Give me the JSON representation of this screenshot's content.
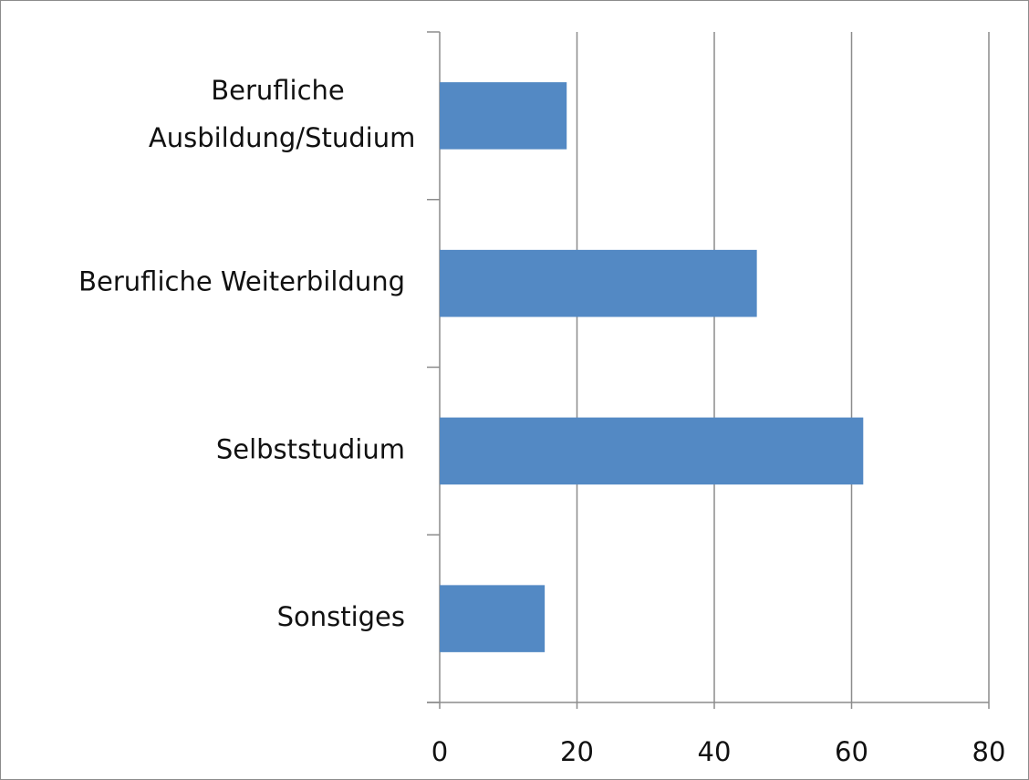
{
  "chart_data": {
    "type": "barh",
    "categories": [
      "Berufliche Ausbildung/Studium",
      "Berufliche Weiterbildung",
      "Selbststudium",
      "Sonstiges"
    ],
    "values": [
      18.5,
      46.2,
      61.7,
      15.3
    ],
    "color": "#5389c4",
    "xlim": [
      0,
      80
    ],
    "xticks": [
      0,
      20,
      40,
      60,
      80
    ],
    "grid": true
  }
}
